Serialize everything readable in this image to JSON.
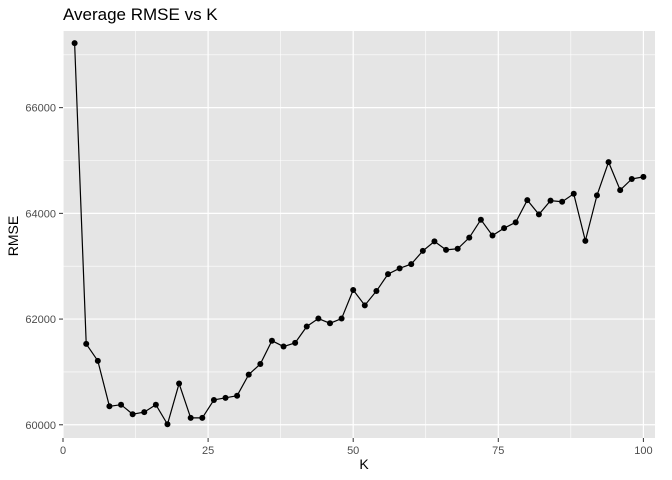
{
  "chart_data": {
    "type": "line",
    "title": "Average RMSE vs K",
    "xlabel": "K",
    "ylabel": "RMSE",
    "xlim": [
      0,
      102
    ],
    "ylim": [
      59750,
      67450
    ],
    "x_ticks": [
      0,
      25,
      50,
      75,
      100
    ],
    "x_tick_labels": [
      "0",
      "25",
      "50",
      "75",
      "100"
    ],
    "y_ticks": [
      60000,
      62000,
      64000,
      66000
    ],
    "y_tick_labels": [
      "60000",
      "62000",
      "64000",
      "66000"
    ],
    "grid": true,
    "legend": "none",
    "colors": {
      "panel_background": "#e5e5e5",
      "grid": "#ffffff",
      "line": "#000000",
      "point": "#000000"
    },
    "x": [
      2,
      4,
      6,
      8,
      10,
      12,
      14,
      16,
      18,
      20,
      22,
      24,
      26,
      28,
      30,
      32,
      34,
      36,
      38,
      40,
      42,
      44,
      46,
      48,
      50,
      52,
      54,
      56,
      58,
      60,
      62,
      64,
      66,
      68,
      70,
      72,
      74,
      76,
      78,
      80,
      82,
      84,
      86,
      88,
      90,
      92,
      94,
      96,
      98,
      100
    ],
    "y": [
      67220,
      61530,
      61210,
      60350,
      60380,
      60200,
      60240,
      60380,
      60010,
      60780,
      60130,
      60130,
      60470,
      60510,
      60550,
      60950,
      61150,
      61590,
      61480,
      61550,
      61860,
      62010,
      61920,
      62010,
      62550,
      62260,
      62530,
      62850,
      62960,
      63040,
      63290,
      63470,
      63310,
      63330,
      63540,
      63880,
      63580,
      63720,
      63830,
      64250,
      63980,
      64240,
      64220,
      64370,
      63480,
      64340,
      64970,
      64440,
      64650,
      64690
    ]
  }
}
